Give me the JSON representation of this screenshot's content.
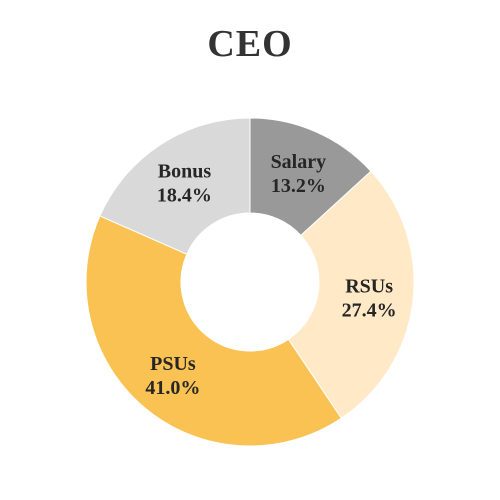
{
  "chart_data": {
    "type": "pie",
    "variant": "donut",
    "title": "CEO",
    "start_angle_deg": 0,
    "direction": "clockwise",
    "slices": [
      {
        "label": "Salary",
        "value": 13.2,
        "value_label": "13.2%",
        "color": "#999999"
      },
      {
        "label": "RSUs",
        "value": 27.4,
        "value_label": "27.4%",
        "color": "#FFE9C6"
      },
      {
        "label": "PSUs",
        "value": 41.0,
        "value_label": "41.0%",
        "color": "#F9C253"
      },
      {
        "label": "Bonus",
        "value": 18.4,
        "value_label": "18.4%",
        "color": "#D9D9D9"
      }
    ],
    "legend": "none"
  }
}
